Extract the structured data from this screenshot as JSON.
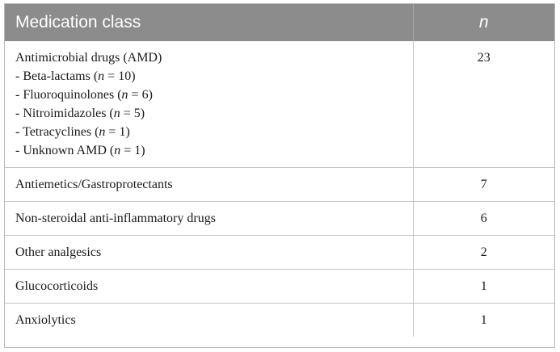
{
  "table": {
    "headers": {
      "class": "Medication class",
      "n": "n"
    },
    "amd": {
      "label": "Antimicrobial drugs (AMD)",
      "value": "23",
      "subitems": [
        {
          "prefix": "- Beta-lactams (",
          "var": "n",
          "rest": " = 10)"
        },
        {
          "prefix": "- Fluoroquinolones (",
          "var": "n",
          "rest": " = 6)"
        },
        {
          "prefix": "- Nitroimidazoles (",
          "var": "n",
          "rest": " = 5)"
        },
        {
          "prefix": "- Tetracyclines (",
          "var": "n",
          "rest": " = 1)"
        },
        {
          "prefix": "- Unknown AMD (",
          "var": "n",
          "rest": " = 1)"
        }
      ]
    },
    "rows": [
      {
        "label": "Antiemetics/Gastroprotectants",
        "value": "7"
      },
      {
        "label": "Non-steroidal anti-inflammatory drugs",
        "value": "6"
      },
      {
        "label": "Other analgesics",
        "value": "2"
      },
      {
        "label": "Glucocorticoids",
        "value": "1"
      },
      {
        "label": "Anxiolytics",
        "value": "1"
      }
    ]
  }
}
